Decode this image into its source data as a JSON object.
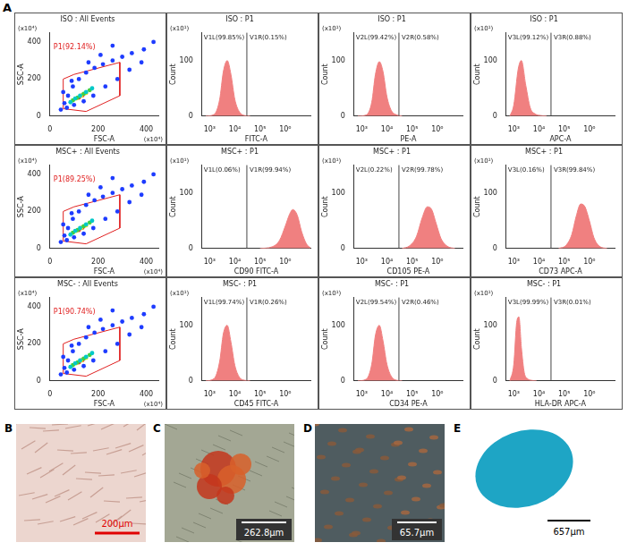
{
  "panel_letter": "A",
  "chart_data": [
    {
      "type": "scatter",
      "title": "ISO : All Events",
      "x_label": "FSC-A",
      "y_label": "SSC-A",
      "annotations": [
        "(x10⁴)",
        "(x10⁴)"
      ],
      "xlim": [
        0,
        450
      ],
      "ylim": [
        0,
        450
      ],
      "xticks": [
        0,
        200,
        400
      ],
      "yticks": [
        0,
        200,
        400
      ],
      "series": [
        {
          "color": "#1e3cff",
          "x": [
            45,
            60,
            75,
            95,
            120,
            150,
            185,
            220,
            260,
            300,
            340,
            390,
            430,
            70,
            100,
            140,
            180,
            230,
            280,
            330,
            380,
            55,
            90,
            160,
            210,
            260
          ],
          "values": [
            35,
            70,
            110,
            160,
            200,
            235,
            260,
            280,
            300,
            320,
            340,
            360,
            400,
            45,
            60,
            80,
            110,
            160,
            200,
            250,
            290,
            130,
            190,
            290,
            330,
            380
          ]
        },
        {
          "color": "#00c8c8",
          "x": [
            85,
            105,
            125,
            150,
            175
          ],
          "values": [
            75,
            95,
            110,
            130,
            150
          ]
        },
        {
          "color": "#40d040",
          "x": [
            95,
            115,
            140,
            165
          ],
          "values": [
            85,
            100,
            120,
            140
          ]
        },
        {
          "color": "#f0e020",
          "x": [
            110,
            130,
            150
          ],
          "values": [
            95,
            110,
            125
          ]
        },
        {
          "color": "#ff2020",
          "x": [
            120,
            135
          ],
          "values": [
            100,
            112
          ]
        }
      ],
      "gate": {
        "label": "P1(92.14%)",
        "color": "#e02020",
        "x": [
          55,
          55,
          100,
          290,
          290,
          150,
          55
        ],
        "y": [
          40,
          200,
          225,
          290,
          110,
          25,
          40
        ]
      }
    },
    {
      "type": "area",
      "title": "ISO : P1",
      "x_label": "FITC-A",
      "y_label": "Count",
      "annotations": [
        "(x10¹)"
      ],
      "log": "x",
      "xlim": [
        500,
        10000000
      ],
      "xticks": [
        {
          "value": 1000,
          "label": "10³"
        },
        {
          "value": 10000,
          "label": "10⁴"
        },
        {
          "value": 100000,
          "label": "10⁵"
        },
        {
          "value": 1000000,
          "label": "10⁶"
        }
      ],
      "ylim": [
        0,
        150
      ],
      "yticks": [
        0,
        100
      ],
      "color": "#f08080",
      "x": [
        700,
        1500,
        2500,
        3500,
        5000,
        7000,
        10000,
        15000,
        25000,
        40000
      ],
      "values": [
        0,
        3,
        30,
        80,
        100,
        75,
        30,
        8,
        1,
        0
      ],
      "gate": {
        "x": 30000,
        "labels": [
          "V1L(99.85%)",
          "V1R(0.15%)"
        ]
      }
    },
    {
      "type": "area",
      "title": "ISO : P1",
      "x_label": "PE-A",
      "y_label": "Count",
      "annotations": [
        "(x10¹)"
      ],
      "log": "x",
      "xlim": [
        500,
        10000000
      ],
      "xticks": [
        {
          "value": 1000,
          "label": "10³"
        },
        {
          "value": 10000,
          "label": "10⁴"
        },
        {
          "value": 100000,
          "label": "10⁵"
        },
        {
          "value": 1000000,
          "label": "10⁶"
        }
      ],
      "ylim": [
        0,
        150
      ],
      "yticks": [
        0,
        100
      ],
      "color": "#f08080",
      "x": [
        700,
        1500,
        2500,
        3500,
        5000,
        7000,
        10000,
        15000,
        25000,
        40000
      ],
      "values": [
        0,
        2,
        25,
        75,
        98,
        80,
        35,
        10,
        2,
        0
      ],
      "gate": {
        "x": 30000,
        "labels": [
          "V2L(99.42%)",
          "V2R(0.58%)"
        ]
      }
    },
    {
      "type": "area",
      "title": "ISO : P1",
      "x_label": "APC-A",
      "y_label": "Count",
      "annotations": [
        "(x10¹)"
      ],
      "log": "x",
      "xlim": [
        500,
        10000000
      ],
      "xticks": [
        {
          "value": 1000,
          "label": "10³"
        },
        {
          "value": 10000,
          "label": "10⁴"
        },
        {
          "value": 100000,
          "label": "10⁵"
        },
        {
          "value": 1000000,
          "label": "10⁶"
        }
      ],
      "ylim": [
        0,
        150
      ],
      "yticks": [
        0,
        100
      ],
      "color": "#f08080",
      "x": [
        700,
        1000,
        1500,
        2000,
        3000,
        4500,
        7000,
        12000,
        20000
      ],
      "values": [
        0,
        20,
        85,
        100,
        55,
        15,
        4,
        1,
        0
      ],
      "gate": {
        "x": 30000,
        "labels": [
          "V3L(99.12%)",
          "V3R(0.88%)"
        ]
      }
    },
    {
      "type": "scatter",
      "title": "MSC+ : All Events",
      "x_label": "FSC-A",
      "y_label": "SSC-A",
      "annotations": [
        "(x10⁴)",
        "(x10⁴)"
      ],
      "xlim": [
        0,
        450
      ],
      "ylim": [
        0,
        450
      ],
      "xticks": [
        0,
        200,
        400
      ],
      "yticks": [
        0,
        200,
        400
      ],
      "series": [
        {
          "color": "#1e3cff",
          "x": [
            45,
            60,
            75,
            95,
            120,
            150,
            185,
            220,
            260,
            300,
            340,
            390,
            430,
            70,
            100,
            140,
            180,
            230,
            280,
            330,
            380,
            55,
            90,
            160,
            210,
            260
          ],
          "values": [
            35,
            70,
            110,
            160,
            200,
            235,
            260,
            280,
            300,
            320,
            340,
            360,
            400,
            45,
            60,
            80,
            110,
            160,
            200,
            250,
            290,
            130,
            190,
            290,
            330,
            380
          ]
        },
        {
          "color": "#00c8c8",
          "x": [
            85,
            105,
            125,
            150,
            175
          ],
          "values": [
            75,
            95,
            110,
            130,
            150
          ]
        },
        {
          "color": "#40d040",
          "x": [
            95,
            115,
            140,
            165
          ],
          "values": [
            85,
            100,
            120,
            140
          ]
        },
        {
          "color": "#f0e020",
          "x": [
            110,
            130,
            150
          ],
          "values": [
            95,
            110,
            125
          ]
        },
        {
          "color": "#ff2020",
          "x": [
            120,
            135
          ],
          "values": [
            100,
            112
          ]
        }
      ],
      "gate": {
        "label": "P1(89.25%)",
        "color": "#e02020",
        "x": [
          55,
          55,
          100,
          290,
          290,
          150,
          55
        ],
        "y": [
          40,
          200,
          225,
          290,
          110,
          25,
          40
        ]
      }
    },
    {
      "type": "area",
      "title": "MSC+ : P1",
      "x_label": "CD90 FITC-A",
      "y_label": "Count",
      "annotations": [
        "(x10¹)"
      ],
      "log": "x",
      "xlim": [
        500,
        10000000
      ],
      "xticks": [
        {
          "value": 1000,
          "label": "10³"
        },
        {
          "value": 10000,
          "label": "10⁴"
        },
        {
          "value": 100000,
          "label": "10⁵"
        },
        {
          "value": 1000000,
          "label": "10⁶"
        }
      ],
      "ylim": [
        0,
        150
      ],
      "yticks": [
        0,
        100
      ],
      "color": "#f08080",
      "x": [
        100000,
        300000,
        600000,
        1000000,
        1500000,
        2000000,
        3000000,
        4500000,
        7000000,
        10000000
      ],
      "values": [
        0,
        3,
        15,
        40,
        62,
        70,
        60,
        30,
        8,
        1
      ],
      "gate": {
        "x": 30000,
        "labels": [
          "V1L(0.06%)",
          "V1R(99.94%)"
        ]
      }
    },
    {
      "type": "area",
      "title": "MSC+ : P1",
      "x_label": "CD105 PE-A",
      "y_label": "Count",
      "annotations": [
        "(x10¹)"
      ],
      "log": "x",
      "xlim": [
        500,
        10000000
      ],
      "xticks": [
        {
          "value": 1000,
          "label": "10³"
        },
        {
          "value": 10000,
          "label": "10⁴"
        },
        {
          "value": 100000,
          "label": "10⁵"
        },
        {
          "value": 1000000,
          "label": "10⁶"
        }
      ],
      "ylim": [
        0,
        150
      ],
      "yticks": [
        0,
        100
      ],
      "color": "#f08080",
      "x": [
        40000,
        80000,
        150000,
        250000,
        400000,
        600000,
        900000,
        1400000,
        2500000,
        5000000
      ],
      "values": [
        0,
        5,
        22,
        55,
        75,
        70,
        45,
        18,
        4,
        0
      ],
      "gate": {
        "x": 30000,
        "labels": [
          "V2L(0.22%)",
          "V2R(99.78%)"
        ]
      }
    },
    {
      "type": "area",
      "title": "MSC+ : P1",
      "x_label": "CD73 APC-A",
      "y_label": "Count",
      "annotations": [
        "(x10¹)"
      ],
      "log": "x",
      "xlim": [
        500,
        10000000
      ],
      "xticks": [
        {
          "value": 1000,
          "label": "10³"
        },
        {
          "value": 10000,
          "label": "10⁴"
        },
        {
          "value": 100000,
          "label": "10⁵"
        },
        {
          "value": 1000000,
          "label": "10⁶"
        }
      ],
      "ylim": [
        0,
        150
      ],
      "yticks": [
        0,
        100
      ],
      "color": "#f08080",
      "x": [
        60000,
        120000,
        200000,
        300000,
        450000,
        650000,
        1000000,
        1500000,
        2500000,
        5000000
      ],
      "values": [
        0,
        6,
        25,
        58,
        80,
        76,
        50,
        20,
        4,
        0
      ],
      "gate": {
        "x": 30000,
        "labels": [
          "V3L(0.16%)",
          "V3R(99.84%)"
        ]
      }
    },
    {
      "type": "scatter",
      "title": "MSC- : All Events",
      "x_label": "FSC-A",
      "y_label": "SSC-A",
      "annotations": [
        "(x10⁴)",
        "(x10⁴)"
      ],
      "xlim": [
        0,
        450
      ],
      "ylim": [
        0,
        450
      ],
      "xticks": [
        0,
        200,
        400
      ],
      "yticks": [
        0,
        200,
        400
      ],
      "series": [
        {
          "color": "#1e3cff",
          "x": [
            45,
            60,
            75,
            95,
            120,
            150,
            185,
            220,
            260,
            300,
            340,
            390,
            430,
            70,
            100,
            140,
            180,
            230,
            280,
            330,
            380,
            55,
            90,
            160,
            210,
            260
          ],
          "values": [
            35,
            70,
            110,
            160,
            200,
            235,
            260,
            280,
            300,
            320,
            340,
            360,
            400,
            45,
            60,
            80,
            110,
            160,
            200,
            250,
            290,
            130,
            190,
            290,
            330,
            380
          ]
        },
        {
          "color": "#00c8c8",
          "x": [
            85,
            105,
            125,
            150,
            175
          ],
          "values": [
            75,
            95,
            110,
            130,
            150
          ]
        },
        {
          "color": "#40d040",
          "x": [
            95,
            115,
            140,
            165
          ],
          "values": [
            85,
            100,
            120,
            140
          ]
        },
        {
          "color": "#f0e020",
          "x": [
            110,
            130,
            150
          ],
          "values": [
            95,
            110,
            125
          ]
        },
        {
          "color": "#ff2020",
          "x": [
            120,
            135
          ],
          "values": [
            100,
            112
          ]
        }
      ],
      "gate": {
        "label": "P1(90.74%)",
        "color": "#e02020",
        "x": [
          55,
          55,
          100,
          290,
          290,
          150,
          55
        ],
        "y": [
          40,
          200,
          225,
          290,
          110,
          25,
          40
        ]
      }
    },
    {
      "type": "area",
      "title": "MSC- : P1",
      "x_label": "CD45 FITC-A",
      "y_label": "Count",
      "annotations": [
        "(x10¹)"
      ],
      "log": "x",
      "xlim": [
        500,
        10000000
      ],
      "xticks": [
        {
          "value": 1000,
          "label": "10³"
        },
        {
          "value": 10000,
          "label": "10⁴"
        },
        {
          "value": 100000,
          "label": "10⁵"
        },
        {
          "value": 1000000,
          "label": "10⁶"
        }
      ],
      "ylim": [
        0,
        150
      ],
      "yticks": [
        0,
        100
      ],
      "color": "#f08080",
      "x": [
        700,
        1500,
        2500,
        3500,
        5000,
        7000,
        10000,
        15000,
        25000,
        40000
      ],
      "values": [
        0,
        4,
        35,
        85,
        100,
        70,
        28,
        7,
        1,
        0
      ],
      "gate": {
        "x": 30000,
        "labels": [
          "V1L(99.74%)",
          "V1R(0.26%)"
        ]
      }
    },
    {
      "type": "area",
      "title": "MSC- : P1",
      "x_label": "CD34 PE-A",
      "y_label": "Count",
      "annotations": [
        "(x10¹)"
      ],
      "log": "x",
      "xlim": [
        500,
        10000000
      ],
      "xticks": [
        {
          "value": 1000,
          "label": "10³"
        },
        {
          "value": 10000,
          "label": "10⁴"
        },
        {
          "value": 100000,
          "label": "10⁵"
        },
        {
          "value": 1000000,
          "label": "10⁶"
        }
      ],
      "ylim": [
        0,
        150
      ],
      "yticks": [
        0,
        100
      ],
      "color": "#f08080",
      "x": [
        700,
        1500,
        2500,
        3500,
        5000,
        7000,
        10000,
        15000,
        25000,
        40000
      ],
      "values": [
        0,
        3,
        30,
        82,
        100,
        72,
        30,
        8,
        1,
        0
      ],
      "gate": {
        "x": 30000,
        "labels": [
          "V2L(99.54%)",
          "V2R(0.46%)"
        ]
      }
    },
    {
      "type": "area",
      "title": "MSC- : P1",
      "x_label": "HLA-DR APC-A",
      "y_label": "Count",
      "annotations": [
        "(x10¹)"
      ],
      "log": "x",
      "xlim": [
        500,
        10000000
      ],
      "xticks": [
        {
          "value": 1000,
          "label": "10³"
        },
        {
          "value": 10000,
          "label": "10⁴"
        },
        {
          "value": 100000,
          "label": "10⁵"
        },
        {
          "value": 1000000,
          "label": "10⁶"
        }
      ],
      "ylim": [
        0,
        150
      ],
      "yticks": [
        0,
        100
      ],
      "color": "#f08080",
      "x": [
        700,
        1000,
        1300,
        1600,
        2000,
        2600,
        3500,
        5000,
        8000
      ],
      "values": [
        0,
        30,
        105,
        115,
        60,
        15,
        4,
        1,
        0
      ],
      "gate": {
        "x": 30000,
        "labels": [
          "V3L(99.99%)",
          "V3R(0.01%)"
        ]
      }
    }
  ],
  "images": [
    {
      "letter": "B",
      "scale_bar": "200μm"
    },
    {
      "letter": "C",
      "scale_bar": "262.8μm"
    },
    {
      "letter": "D",
      "scale_bar": "65.7μm"
    },
    {
      "letter": "E",
      "scale_bar": "657μm"
    }
  ]
}
